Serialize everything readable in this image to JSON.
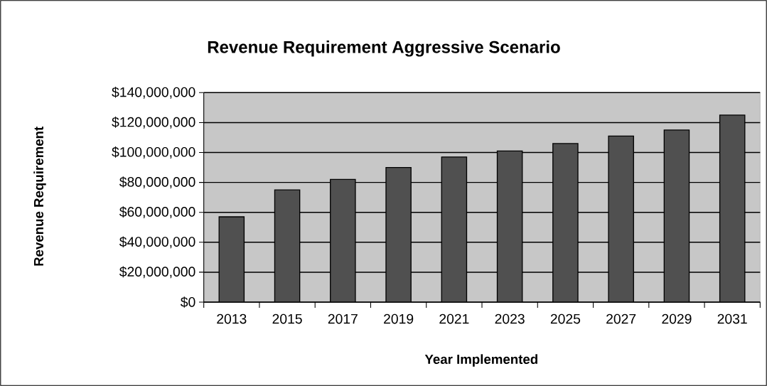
{
  "chart_data": {
    "type": "bar",
    "title": "Revenue Requirement Aggressive Scenario",
    "xlabel": "Year Implemented",
    "ylabel": "Revenue Requirement",
    "categories": [
      "2013",
      "2015",
      "2017",
      "2019",
      "2021",
      "2023",
      "2025",
      "2027",
      "2029",
      "2031"
    ],
    "values": [
      57000000,
      75000000,
      82000000,
      90000000,
      97000000,
      101000000,
      106000000,
      111000000,
      115000000,
      125000000
    ],
    "color": "#505050",
    "ylim": [
      0,
      140000000
    ],
    "yticks": [
      {
        "value": 0,
        "label": "$0"
      },
      {
        "value": 20000000,
        "label": "$20,000,000"
      },
      {
        "value": 40000000,
        "label": "$40,000,000"
      },
      {
        "value": 60000000,
        "label": "$60,000,000"
      },
      {
        "value": 80000000,
        "label": "$80,000,000"
      },
      {
        "value": 100000000,
        "label": "$100,000,000"
      },
      {
        "value": 120000000,
        "label": "$120,000,000"
      },
      {
        "value": 140000000,
        "label": "$140,000,000"
      }
    ],
    "grid": "y"
  }
}
